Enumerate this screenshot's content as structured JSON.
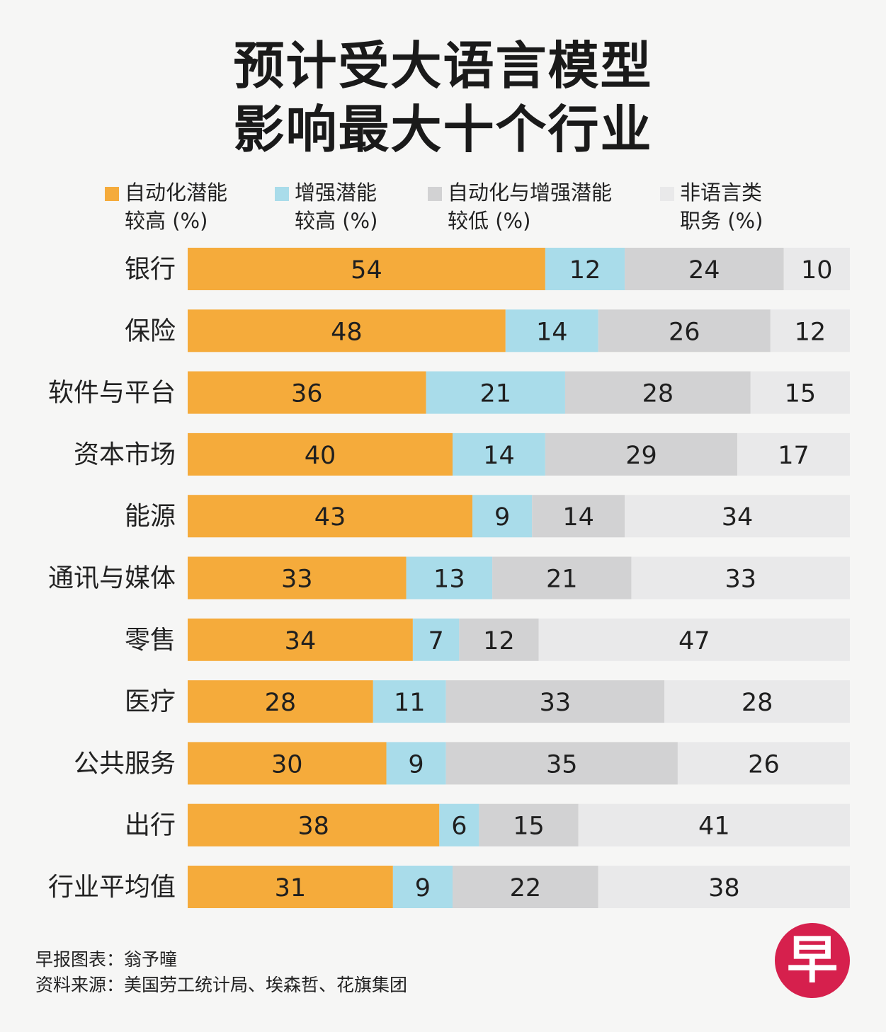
{
  "title": {
    "line1": "预计受大语言模型",
    "line2": "影响最大十个行业"
  },
  "colors": {
    "automation_high": "#f5ab3b",
    "augmentation_high": "#a9dcea",
    "low_potential": "#d2d2d3",
    "non_language": "#e9e9ea",
    "background": "#f6f6f5",
    "logo": "#d6204d"
  },
  "legend": [
    {
      "line1": "自动化潜能",
      "line2": "较高 (%)"
    },
    {
      "line1": "增强潜能",
      "line2": "较高 (%)"
    },
    {
      "line1": "自动化与增强潜能",
      "line2": "较低 (%)"
    },
    {
      "line1": "非语言类",
      "line2": "职务 (%)"
    }
  ],
  "chart_data": {
    "type": "bar",
    "orientation": "horizontal",
    "stacked": true,
    "title": "预计受大语言模型影响最大十个行业",
    "categories": [
      "银行",
      "保险",
      "软件与平台",
      "资本市场",
      "能源",
      "通讯与媒体",
      "零售",
      "医疗",
      "公共服务",
      "出行",
      "行业平均值"
    ],
    "series": [
      {
        "name": "自动化潜能较高 (%)",
        "values": [
          54,
          48,
          36,
          40,
          43,
          33,
          34,
          28,
          30,
          38,
          31
        ]
      },
      {
        "name": "增强潜能较高 (%)",
        "values": [
          12,
          14,
          21,
          14,
          9,
          13,
          7,
          11,
          9,
          6,
          9
        ]
      },
      {
        "name": "自动化与增强潜能较低 (%)",
        "values": [
          24,
          26,
          28,
          29,
          14,
          21,
          12,
          33,
          35,
          15,
          22
        ]
      },
      {
        "name": "非语言类职务 (%)",
        "values": [
          10,
          12,
          15,
          17,
          34,
          33,
          47,
          28,
          26,
          41,
          38
        ]
      }
    ],
    "xlim": [
      0,
      100
    ],
    "legend_position": "top",
    "grid": false
  },
  "footer": {
    "credit": "早报图表：翁予曈",
    "source": "资料来源：美国劳工统计局、埃森哲、花旗集团"
  },
  "logo": {
    "glyph": "早"
  }
}
